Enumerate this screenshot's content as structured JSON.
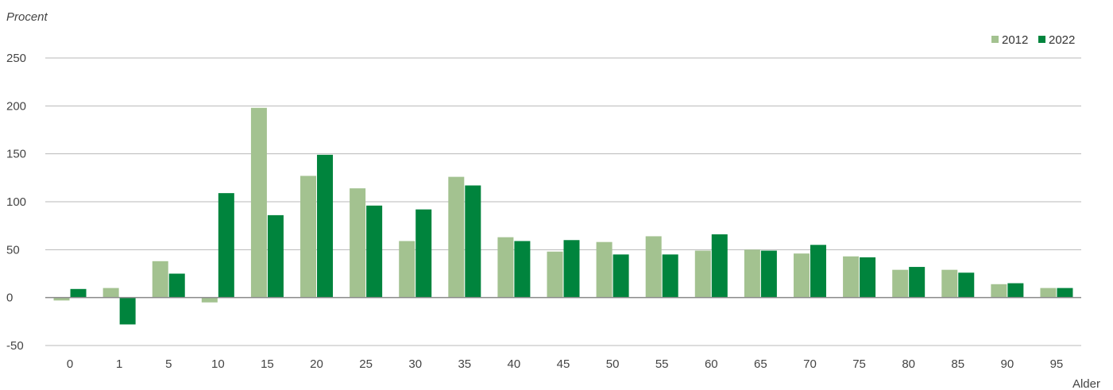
{
  "chart_data": {
    "type": "bar",
    "ylabel": "Procent",
    "xlabel": "Alder",
    "categories": [
      "0",
      "1",
      "5",
      "10",
      "15",
      "20",
      "25",
      "30",
      "35",
      "40",
      "45",
      "50",
      "55",
      "60",
      "65",
      "70",
      "75",
      "80",
      "85",
      "90",
      "95"
    ],
    "series": [
      {
        "name": "2012",
        "color": "#a3c290",
        "values": [
          -3,
          10,
          38,
          -5,
          198,
          127,
          114,
          59,
          126,
          63,
          48,
          58,
          64,
          49,
          50,
          46,
          43,
          29,
          29,
          14,
          10
        ]
      },
      {
        "name": "2022",
        "color": "#00843d",
        "values": [
          9,
          -28,
          25,
          109,
          86,
          149,
          96,
          92,
          117,
          59,
          60,
          45,
          45,
          66,
          49,
          55,
          42,
          32,
          26,
          15,
          10
        ]
      }
    ],
    "ylim": [
      -50,
      250
    ],
    "yticks": [
      -50,
      0,
      50,
      100,
      150,
      200,
      250
    ],
    "grid": true,
    "legend_position": "top-right",
    "colors": {
      "grid": "#b8b8b8",
      "zero_axis": "#8a8a8a"
    }
  }
}
